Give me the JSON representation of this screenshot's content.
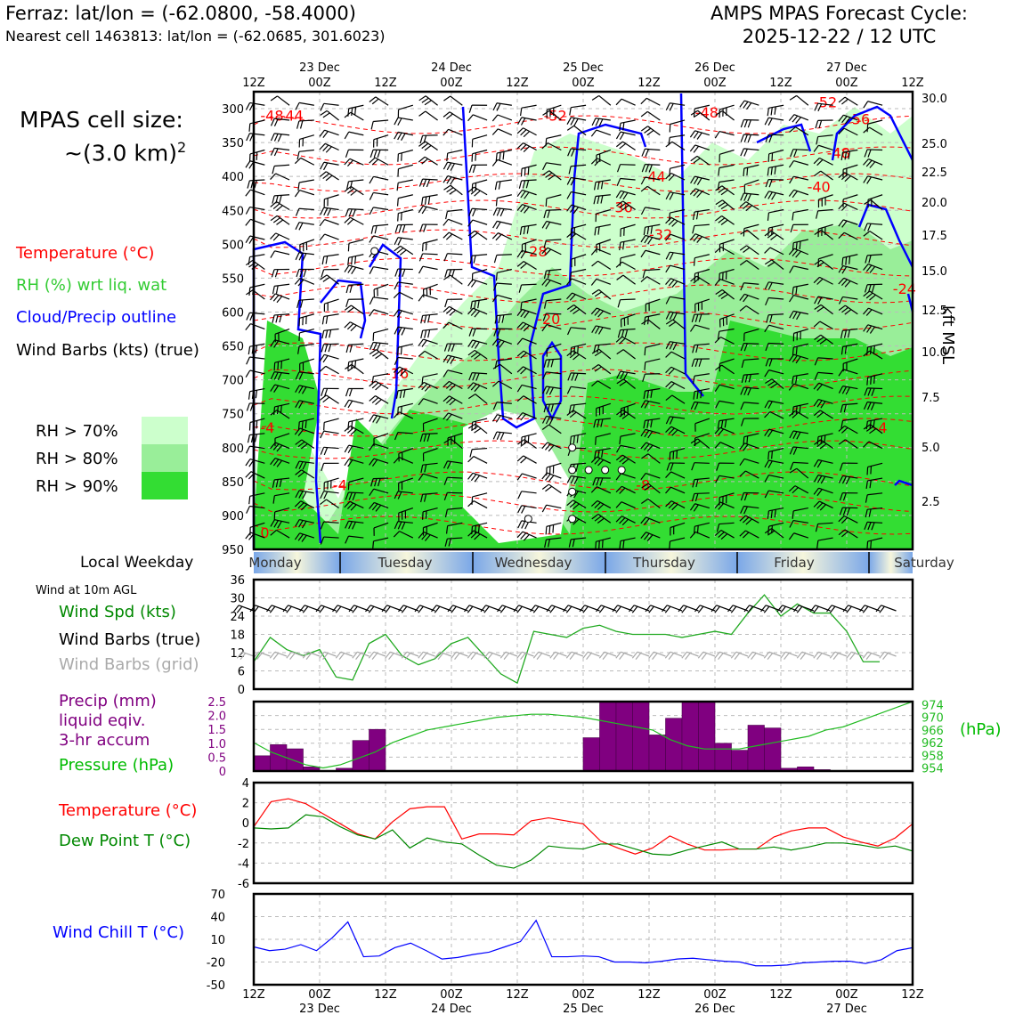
{
  "header": {
    "station_line": "Ferraz: lat/lon = (-62.0800, -58.4000)",
    "cell_line": "Nearest cell 1463813: lat/lon = (-62.0685, 301.6023)",
    "forecast_title": "AMPS MPAS Forecast Cycle:",
    "forecast_cycle": "2025-12-22 / 12 UTC"
  },
  "cell_size": {
    "line1": "MPAS cell size:",
    "line2": "~(3.0 km)",
    "sup": "2"
  },
  "legend_upper": {
    "temperature": "Temperature (°C)",
    "rh": "RH (%) wrt liq. wat",
    "cloud": "Cloud/Precip outline",
    "wind": "Wind Barbs (kts) (true)",
    "rh70": "RH > 70%",
    "rh80": "RH > 80%",
    "rh90": "RH > 90%"
  },
  "weekday_label": "Local Weekday",
  "wind10_label": "Wind at 10m AGL",
  "legend_wind": {
    "speed": "Wind Spd (kts)",
    "barbs_true": "Wind Barbs (true)",
    "barbs_grid": "Wind Barbs (grid)"
  },
  "legend_precip": {
    "l1": "Precip (mm)",
    "l2": "liquid eqiv.",
    "l3": "3-hr accum",
    "pressure": "Pressure (hPa)",
    "hpa": "(hPa)"
  },
  "legend_temp": {
    "temperature": "Temperature (°C)",
    "dewpoint": "Dew Point T (°C)"
  },
  "legend_chill": {
    "label": "Wind Chill T (°C)"
  },
  "right_axis_label": "kft MSL",
  "colors": {
    "temperature": "#ff0000",
    "rh": "#33cc33",
    "cloud": "#0000ff",
    "wind": "#000000",
    "precip": "#800080",
    "pressure": "#00aa00",
    "dewpoint": "#008800",
    "chill": "#0000ff",
    "grid_barbs": "#aaaaaa",
    "rh70": "#ccffcc",
    "rh80": "#99ee99",
    "rh90": "#33dd33"
  },
  "chart_data": [
    {
      "type": "area",
      "name": "upper-air time-height",
      "x_ticks": [
        "12Z",
        "00Z",
        "12Z",
        "00Z",
        "12Z",
        "00Z",
        "12Z",
        "00Z",
        "12Z",
        "00Z",
        "12Z"
      ],
      "date_ticks": [
        "23 Dec",
        "24 Dec",
        "25 Dec",
        "26 Dec",
        "27 Dec"
      ],
      "y_ticks_hpa": [
        "300",
        "350",
        "400",
        "450",
        "500",
        "550",
        "600",
        "650",
        "700",
        "750",
        "800",
        "850",
        "900",
        "950"
      ],
      "y_ticks_kft": [
        "30.0",
        "25.0",
        "22.5",
        "20.0",
        "17.5",
        "15.0",
        "12.5",
        "10.0",
        "7.5",
        "5.0",
        "2.5"
      ],
      "ylim_hpa": [
        950,
        275
      ],
      "temperature_labels": [
        {
          "text": "-48",
          "t": 1,
          "p": 310
        },
        {
          "text": "-44",
          "t": 4,
          "p": 310
        },
        {
          "text": "-52",
          "t": 44,
          "p": 310
        },
        {
          "text": "-48",
          "t": 67,
          "p": 305
        },
        {
          "text": "-52",
          "t": 85,
          "p": 290
        },
        {
          "text": "-56",
          "t": 90,
          "p": 315
        },
        {
          "text": "-48",
          "t": 87,
          "p": 365
        },
        {
          "text": "-44",
          "t": 59,
          "p": 400
        },
        {
          "text": "-40",
          "t": 84,
          "p": 415
        },
        {
          "text": "-36",
          "t": 54,
          "p": 445
        },
        {
          "text": "-32",
          "t": 60,
          "p": 485
        },
        {
          "text": "-28",
          "t": 41,
          "p": 510
        },
        {
          "text": "-24",
          "t": 97,
          "p": 565
        },
        {
          "text": "-20",
          "t": 43,
          "p": 610
        },
        {
          "text": "-16",
          "t": 20,
          "p": 690
        },
        {
          "text": "-4",
          "t": 1,
          "p": 770
        },
        {
          "text": "-4",
          "t": 12,
          "p": 855
        },
        {
          "text": "-8",
          "t": 58,
          "p": 855
        },
        {
          "text": "-4",
          "t": 94,
          "p": 770
        },
        {
          "text": "0",
          "t": 1,
          "p": 925
        }
      ]
    },
    {
      "type": "line",
      "name": "wind speed 10m",
      "ylim": [
        0,
        36
      ],
      "y_ticks": [
        "36",
        "30",
        "24",
        "18",
        "12",
        "6",
        "0"
      ],
      "x_hours": [
        0,
        3,
        6,
        9,
        12,
        15,
        18,
        21,
        24,
        27,
        30,
        33,
        36,
        39,
        42,
        45,
        48,
        51,
        54,
        57,
        60,
        63,
        66,
        69,
        72,
        75,
        78,
        81,
        84,
        87,
        90,
        93,
        96,
        99,
        102,
        105,
        108,
        111,
        114,
        117,
        120
      ],
      "values": [
        9,
        17,
        13,
        11,
        13,
        4,
        3,
        15,
        18,
        11,
        8,
        10,
        15,
        17,
        11,
        5,
        2,
        19,
        18,
        17,
        20,
        21,
        19,
        18,
        18,
        18,
        17,
        18,
        19,
        18,
        25,
        31,
        24,
        28,
        25,
        25,
        19,
        9,
        9,
        null,
        null
      ]
    },
    {
      "type": "bar",
      "name": "precip 3-hr accum",
      "ylim": [
        0,
        2.5
      ],
      "y_ticks": [
        "2.5",
        "2.0",
        "1.5",
        "1.0",
        "0.5",
        "0"
      ],
      "values": [
        0.55,
        0.95,
        0.8,
        0.15,
        0,
        0.1,
        1.1,
        1.5,
        0,
        0,
        0,
        0,
        0,
        0,
        0,
        0,
        0,
        0,
        0,
        0,
        1.2,
        2.5,
        2.5,
        2.5,
        1.3,
        1.9,
        2.5,
        2.5,
        1.0,
        0.75,
        1.65,
        1.55,
        0.1,
        0.15,
        0.05,
        0,
        0,
        0,
        0,
        0
      ],
      "pressure_label_ticks": [
        "974",
        "970",
        "966",
        "962",
        "958",
        "954"
      ],
      "pressure_ylim": [
        953,
        975
      ],
      "pressure_values": [
        962,
        959,
        957,
        955,
        954,
        955,
        957,
        959,
        962,
        964,
        966,
        967,
        968,
        969,
        970,
        970.5,
        971,
        971,
        970.5,
        970,
        969,
        968,
        967,
        966,
        963,
        961,
        960,
        960,
        960,
        961,
        962,
        963,
        964,
        966,
        967,
        969,
        971,
        973,
        975
      ]
    },
    {
      "type": "line",
      "name": "temperature and dew point",
      "ylim": [
        -6,
        4
      ],
      "y_ticks": [
        "4",
        "2",
        "0",
        "-2",
        "-4",
        "-6"
      ],
      "series": [
        {
          "name": "Temperature (°C)",
          "values": [
            -0.4,
            2.1,
            2.4,
            1.9,
            0.9,
            -0.1,
            -1.1,
            -1.6,
            0.1,
            1.4,
            1.6,
            1.6,
            -1.6,
            -1.1,
            -1.1,
            -1.2,
            0.2,
            0.5,
            0.2,
            -0.1,
            -1.8,
            -2.5,
            -3.1,
            -2.5,
            -1.3,
            -2.1,
            -2.7,
            -2.7,
            -2.6,
            -2.6,
            -1.4,
            -0.8,
            -0.5,
            -0.5,
            -1.4,
            -1.9,
            -2.3,
            -1.5,
            -0.1
          ]
        },
        {
          "name": "Dew Point T (°C)",
          "values": [
            -0.5,
            -0.6,
            -0.5,
            0.8,
            0.6,
            -0.4,
            -1.2,
            -1.6,
            -0.7,
            -2.5,
            -1.5,
            -1.9,
            -2.1,
            -3.2,
            -4.2,
            -4.5,
            -3.7,
            -2.3,
            -2.5,
            -2.6,
            -2.1,
            -2.1,
            -2.6,
            -3.1,
            -3.2,
            -2.7,
            -2.3,
            -1.9,
            -2.6,
            -2.6,
            -2.4,
            -2.7,
            -2.4,
            -2.0,
            -2.0,
            -2.2,
            -2.5,
            -2.3,
            -2.8
          ]
        }
      ]
    },
    {
      "type": "line",
      "name": "wind chill",
      "ylim": [
        -50,
        70
      ],
      "y_ticks": [
        "70",
        "40",
        "10",
        "-20",
        "-50"
      ],
      "values": [
        0,
        -5,
        -3,
        3,
        -5,
        12,
        33,
        -13,
        -12,
        -1,
        5,
        -5,
        -16,
        -14,
        -10,
        -7,
        0,
        7,
        35,
        -13,
        -13,
        -12,
        -13,
        -20,
        -20,
        -21,
        -19,
        -16,
        -15,
        -17,
        -19,
        -20,
        -25,
        -25,
        -24,
        -21,
        -20,
        -19,
        -19,
        -22,
        -17,
        -5,
        -1
      ]
    },
    {
      "type": "table",
      "name": "local weekday strip",
      "days": [
        "Monday",
        "Tuesday",
        "Wednesday",
        "Thursday",
        "Friday",
        "Saturday"
      ]
    }
  ]
}
